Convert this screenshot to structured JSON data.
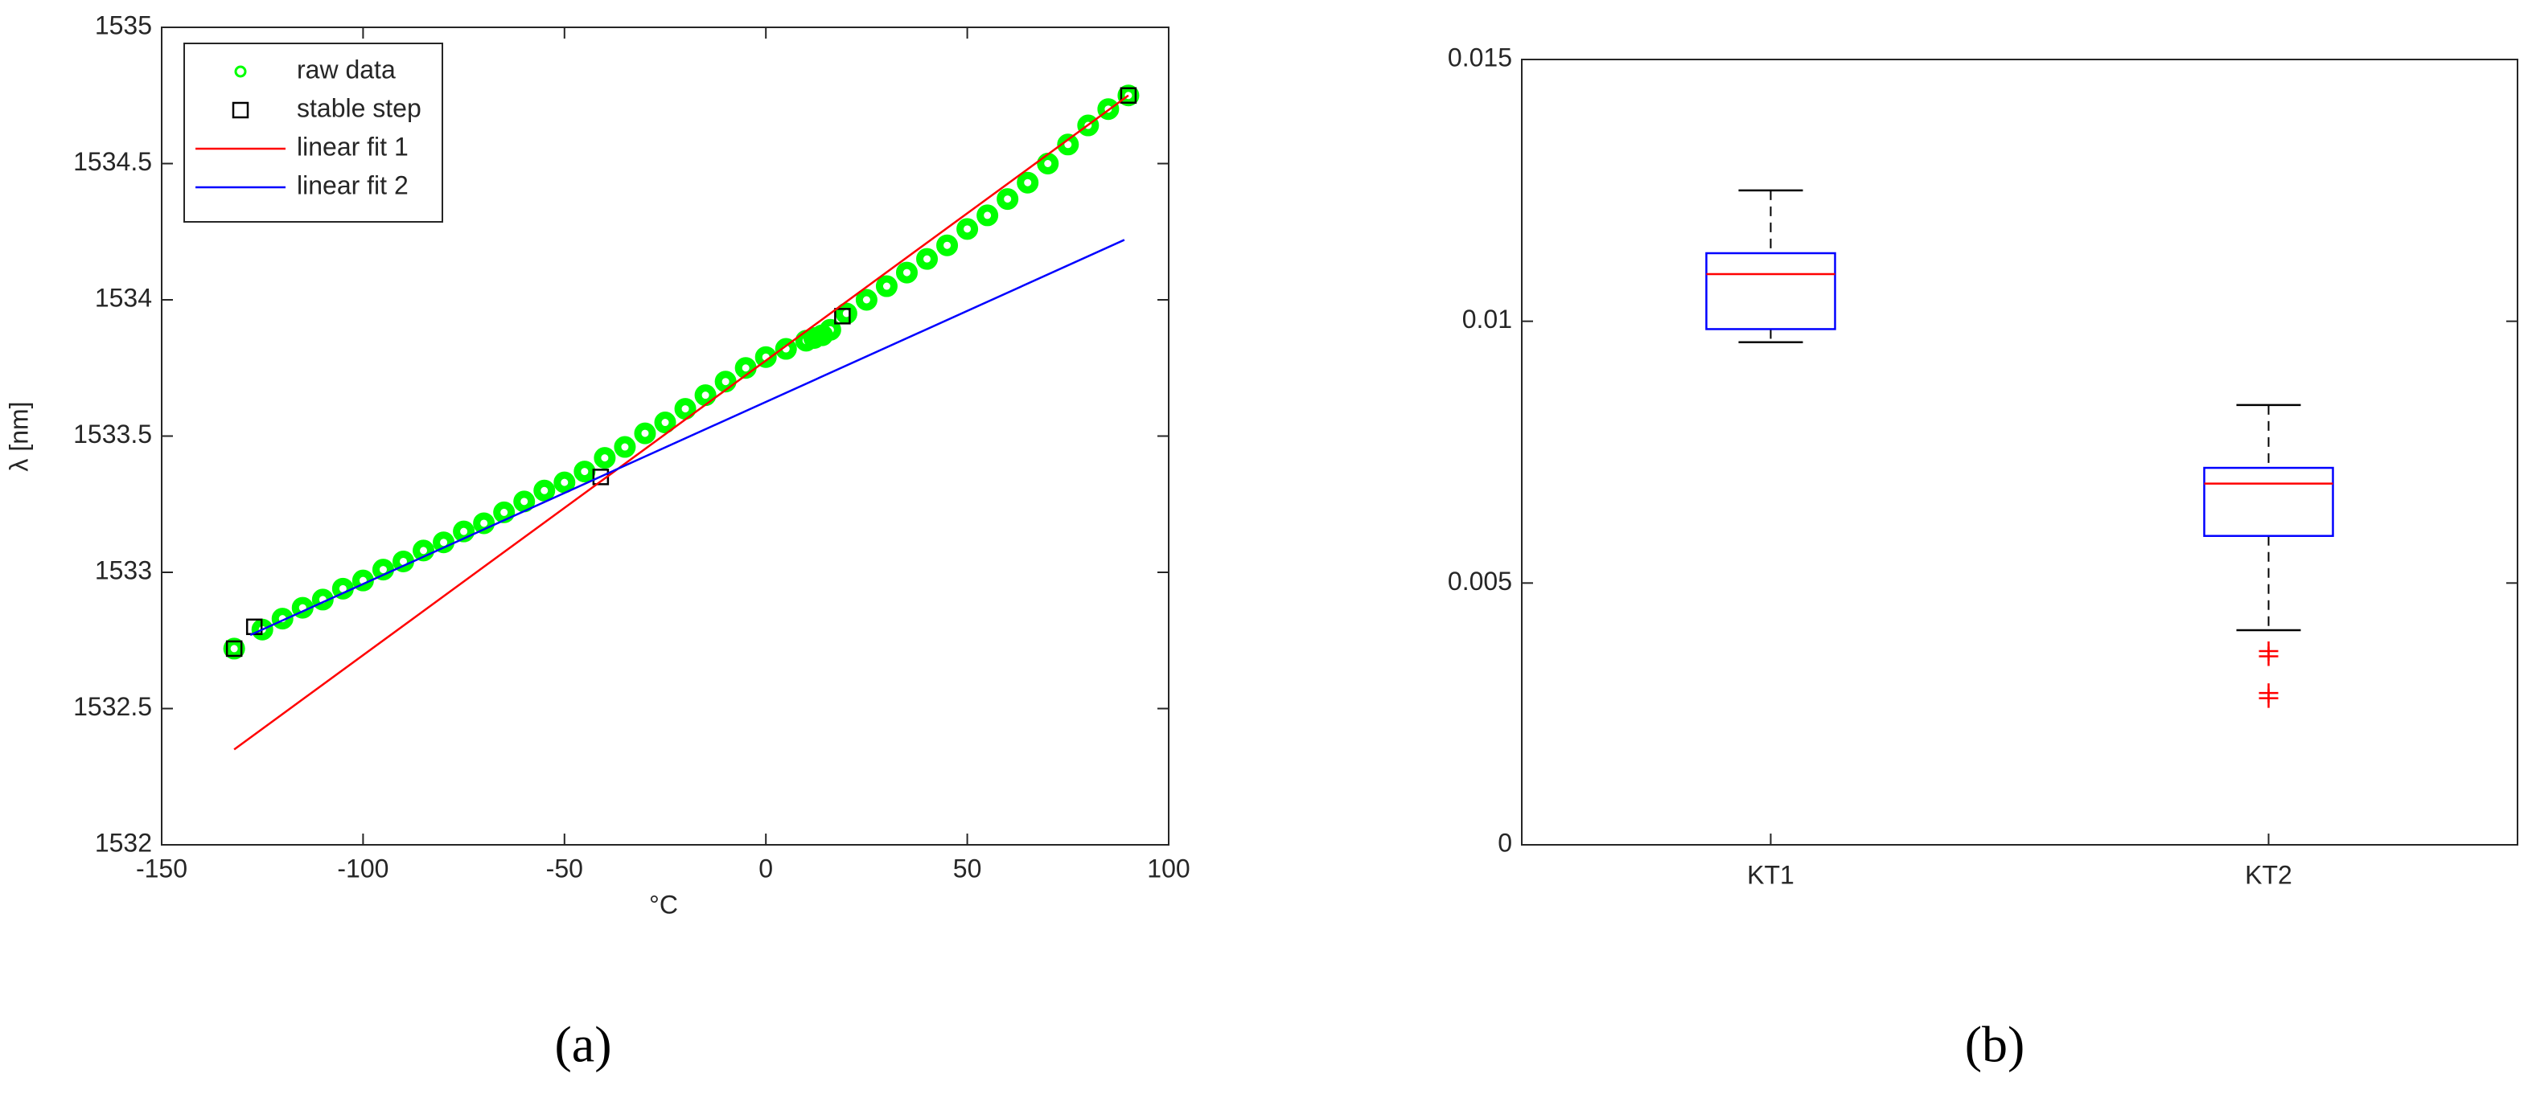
{
  "chart_data": [
    {
      "type": "line",
      "caption": "(a)",
      "xlabel": "°C",
      "ylabel": "λ [nm]",
      "xlim": [
        -150,
        100
      ],
      "xticks": [
        -150,
        -100,
        -50,
        0,
        50,
        100
      ],
      "ylim": [
        1532,
        1535
      ],
      "yticks": [
        1532,
        1532.5,
        1533,
        1533.5,
        1534,
        1534.5,
        1535
      ],
      "legend": "upper left",
      "series": [
        {
          "name": "raw data",
          "kind": "scatter",
          "marker": "circle",
          "color": "#00ff00",
          "x": [
            -132,
            -125,
            -120,
            -115,
            -110,
            -105,
            -100,
            -95,
            -90,
            -85,
            -80,
            -75,
            -70,
            -65,
            -60,
            -55,
            -50,
            -45,
            -40,
            -35,
            -30,
            -25,
            -20,
            -15,
            -10,
            -5,
            0,
            5,
            10,
            12,
            14,
            16,
            20,
            25,
            30,
            35,
            40,
            45,
            50,
            55,
            60,
            65,
            70,
            75,
            80,
            85,
            90
          ],
          "values": [
            1532.72,
            1532.79,
            1532.83,
            1532.87,
            1532.9,
            1532.94,
            1532.97,
            1533.01,
            1533.04,
            1533.08,
            1533.11,
            1533.15,
            1533.18,
            1533.22,
            1533.26,
            1533.3,
            1533.33,
            1533.37,
            1533.42,
            1533.46,
            1533.51,
            1533.55,
            1533.6,
            1533.65,
            1533.7,
            1533.75,
            1533.79,
            1533.82,
            1533.85,
            1533.86,
            1533.87,
            1533.89,
            1533.95,
            1534.0,
            1534.05,
            1534.1,
            1534.15,
            1534.2,
            1534.26,
            1534.31,
            1534.37,
            1534.43,
            1534.5,
            1534.57,
            1534.64,
            1534.7,
            1534.75
          ]
        },
        {
          "name": "stable step",
          "kind": "scatter",
          "marker": "square",
          "color": "#000000",
          "x": [
            -132,
            -127,
            -41,
            19,
            90
          ],
          "values": [
            1532.72,
            1532.8,
            1533.35,
            1533.94,
            1534.75
          ]
        },
        {
          "name": "linear fit 1",
          "kind": "line",
          "color": "#ff0000",
          "x": [
            -132,
            90
          ],
          "values": [
            1532.35,
            1534.75
          ]
        },
        {
          "name": "linear fit 2",
          "kind": "line",
          "color": "#0000ff",
          "x": [
            -128,
            89
          ],
          "values": [
            1532.77,
            1534.22
          ]
        }
      ]
    },
    {
      "type": "box",
      "caption": "(b)",
      "categories": [
        "KT1",
        "KT2"
      ],
      "ylim": [
        0,
        0.015
      ],
      "yticks": [
        0,
        0.005,
        0.01,
        0.015
      ],
      "box_color": "#0000ff",
      "median_color": "#ff0000",
      "whisker_color": "#000000",
      "flier_color": "#ff0000",
      "boxes": [
        {
          "whislo": 0.0096,
          "q1": 0.00985,
          "med": 0.0109,
          "q3": 0.0113,
          "whishi": 0.0125,
          "fliers": []
        },
        {
          "whislo": 0.0041,
          "q1": 0.0059,
          "med": 0.0069,
          "q3": 0.0072,
          "whishi": 0.0084,
          "fliers": [
            0.0037,
            0.0036,
            0.0029,
            0.0028
          ]
        }
      ]
    }
  ]
}
